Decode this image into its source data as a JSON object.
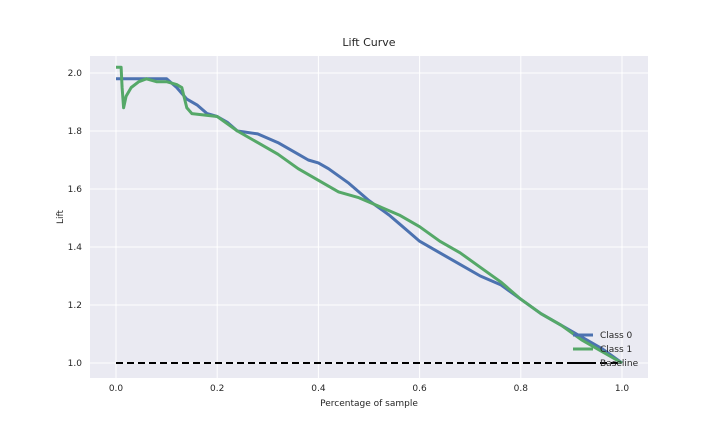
{
  "chart_data": {
    "type": "line",
    "title": "Lift Curve",
    "xlabel": "Percentage of sample",
    "ylabel": "Lift",
    "xlim": [
      -0.05,
      1.05
    ],
    "ylim": [
      0.95,
      2.06
    ],
    "xticks": [
      0.0,
      0.2,
      0.4,
      0.6,
      0.8,
      1.0
    ],
    "xtick_labels": [
      "0.0",
      "0.2",
      "0.4",
      "0.6",
      "0.8",
      "1.0"
    ],
    "yticks": [
      1.0,
      1.2,
      1.4,
      1.6,
      1.8,
      2.0
    ],
    "ytick_labels": [
      "1.0",
      "1.2",
      "1.4",
      "1.6",
      "1.8",
      "2.0"
    ],
    "grid": true,
    "legend_position": "bottom-right",
    "series": [
      {
        "name": "Class 0",
        "color": "#4C72B0",
        "dash": false,
        "x": [
          0.0,
          0.1,
          0.12,
          0.14,
          0.16,
          0.18,
          0.2,
          0.22,
          0.24,
          0.28,
          0.32,
          0.36,
          0.38,
          0.4,
          0.42,
          0.46,
          0.5,
          0.54,
          0.56,
          0.58,
          0.6,
          0.64,
          0.68,
          0.72,
          0.76,
          0.8,
          0.84,
          0.88,
          0.92,
          0.96,
          1.0
        ],
        "y": [
          1.98,
          1.98,
          1.95,
          1.91,
          1.89,
          1.86,
          1.85,
          1.83,
          1.8,
          1.79,
          1.76,
          1.72,
          1.7,
          1.69,
          1.67,
          1.62,
          1.56,
          1.51,
          1.48,
          1.45,
          1.42,
          1.38,
          1.34,
          1.3,
          1.27,
          1.22,
          1.17,
          1.13,
          1.09,
          1.05,
          1.0
        ]
      },
      {
        "name": "Class 1",
        "color": "#55A868",
        "dash": false,
        "x": [
          0.0,
          0.01,
          0.012,
          0.015,
          0.02,
          0.03,
          0.045,
          0.06,
          0.08,
          0.1,
          0.12,
          0.13,
          0.14,
          0.15,
          0.2,
          0.24,
          0.28,
          0.32,
          0.36,
          0.4,
          0.44,
          0.48,
          0.52,
          0.56,
          0.6,
          0.64,
          0.68,
          0.72,
          0.76,
          0.8,
          0.84,
          0.88,
          0.92,
          0.96,
          1.0
        ],
        "y": [
          2.02,
          2.02,
          1.95,
          1.88,
          1.92,
          1.95,
          1.97,
          1.98,
          1.97,
          1.97,
          1.96,
          1.95,
          1.88,
          1.86,
          1.85,
          1.8,
          1.76,
          1.72,
          1.67,
          1.63,
          1.59,
          1.57,
          1.54,
          1.51,
          1.47,
          1.42,
          1.38,
          1.33,
          1.28,
          1.22,
          1.17,
          1.13,
          1.08,
          1.04,
          1.0
        ]
      },
      {
        "name": "Baseline",
        "color": "#000000",
        "dash": true,
        "x": [
          0.0,
          1.0
        ],
        "y": [
          1.0,
          1.0
        ]
      }
    ]
  }
}
